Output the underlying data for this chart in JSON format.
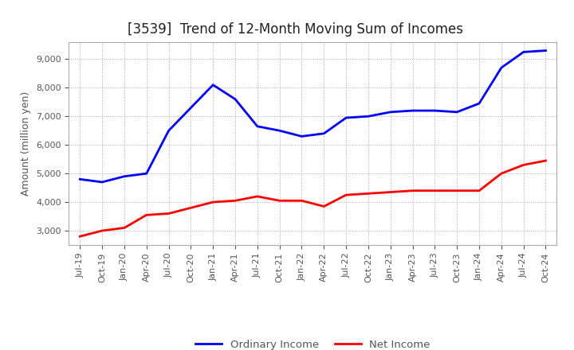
{
  "title": "[3539]  Trend of 12-Month Moving Sum of Incomes",
  "ylabel": "Amount (million yen)",
  "x_labels": [
    "Jul-19",
    "Oct-19",
    "Jan-20",
    "Apr-20",
    "Jul-20",
    "Oct-20",
    "Jan-21",
    "Apr-21",
    "Jul-21",
    "Oct-21",
    "Jan-22",
    "Apr-22",
    "Jul-22",
    "Oct-22",
    "Jan-23",
    "Apr-23",
    "Jul-23",
    "Oct-23",
    "Jan-24",
    "Apr-24",
    "Jul-24",
    "Oct-24"
  ],
  "ordinary_income": [
    4800,
    4700,
    4900,
    5000,
    6500,
    7300,
    8100,
    7600,
    6650,
    6500,
    6300,
    6400,
    6950,
    7000,
    7150,
    7200,
    7200,
    7150,
    7450,
    8700,
    9250,
    9300
  ],
  "net_income": [
    2800,
    3000,
    3100,
    3550,
    3600,
    3800,
    4000,
    4050,
    4200,
    4050,
    4050,
    3850,
    4250,
    4300,
    4350,
    4400,
    4400,
    4400,
    4400,
    5000,
    5300,
    5450
  ],
  "ordinary_color": "#0000FF",
  "net_color": "#FF0000",
  "ylim_min": 2500,
  "ylim_max": 9600,
  "yticks": [
    3000,
    4000,
    5000,
    6000,
    7000,
    8000,
    9000
  ],
  "background_color": "#FFFFFF",
  "grid_color": "#AAAAAA",
  "text_color": "#555555",
  "title_fontsize": 12,
  "tick_fontsize": 8,
  "ylabel_fontsize": 9,
  "legend_fontsize": 9.5
}
